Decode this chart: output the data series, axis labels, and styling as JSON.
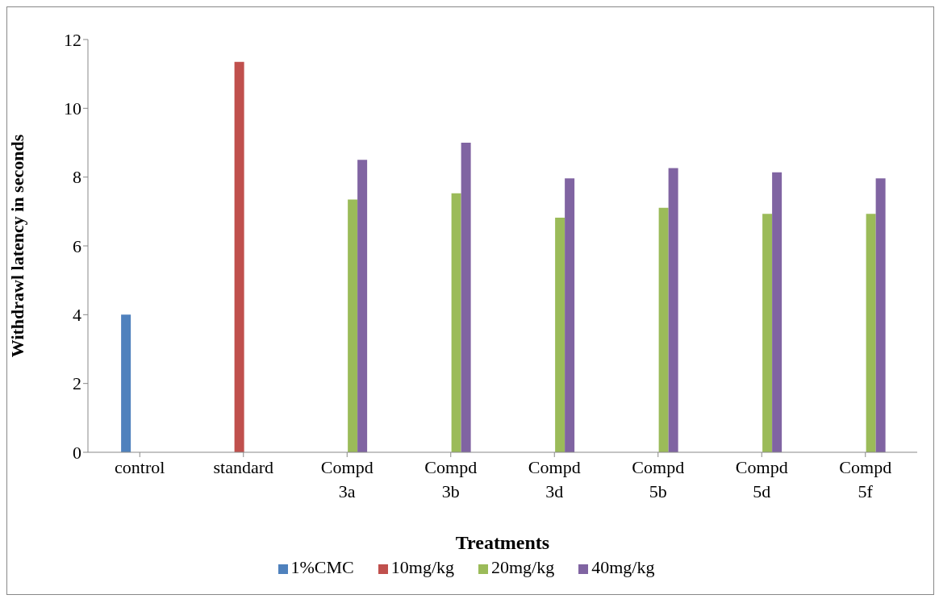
{
  "chart_data": {
    "type": "bar",
    "xlabel": "Treatments",
    "ylabel": "Withdrawl latency in seconds",
    "categories": [
      "control",
      "standard",
      "Compd 3a",
      "Compd 3b",
      "Compd 3d",
      "Compd 5b",
      "Compd 5d",
      "Compd 5f"
    ],
    "series": [
      {
        "name": "1%CMC",
        "color": "#4f81bd",
        "values": [
          4.0,
          null,
          null,
          null,
          null,
          null,
          null,
          null
        ]
      },
      {
        "name": "10mg/kg",
        "color": "#c0504d",
        "values": [
          null,
          11.35,
          null,
          null,
          null,
          null,
          null,
          null
        ]
      },
      {
        "name": "20mg/kg",
        "color": "#9bbb59",
        "values": [
          null,
          null,
          7.35,
          7.53,
          6.82,
          7.11,
          6.93,
          6.93
        ]
      },
      {
        "name": "40mg/kg",
        "color": "#8064a2",
        "values": [
          null,
          null,
          8.5,
          9.0,
          7.96,
          8.26,
          8.14,
          7.96
        ]
      }
    ],
    "ylim": [
      0,
      12
    ],
    "yticks": [
      0,
      2,
      4,
      6,
      8,
      10,
      12
    ],
    "grid": false,
    "legend": "bottom"
  }
}
